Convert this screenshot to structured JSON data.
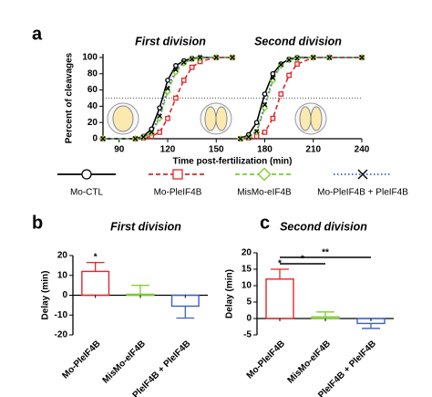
{
  "chart_data": [
    {
      "type": "line",
      "label": "a",
      "annotations": [
        "First division",
        "Second division"
      ],
      "x_label": "Time post-fertilization (min)",
      "y_label": "Percent of cleavages",
      "x": [
        80,
        100,
        105,
        110,
        115,
        120,
        125,
        130,
        135,
        140,
        150,
        160,
        161,
        165,
        170,
        175,
        180,
        185,
        190,
        195,
        200,
        210,
        220,
        240
      ],
      "xlim": [
        80,
        240
      ],
      "xticks": [
        90,
        120,
        150,
        180,
        210,
        240
      ],
      "ylim": [
        0,
        100
      ],
      "yticks": [
        0,
        20,
        40,
        60,
        80,
        100
      ],
      "hline": 50,
      "series": [
        {
          "name": "Mo-CTL",
          "color": "#000000",
          "marker": "circle",
          "dash": "solid",
          "values": [
            0,
            0,
            3,
            12,
            38,
            72,
            90,
            96,
            99,
            100,
            100,
            100,
            null,
            0,
            5,
            20,
            55,
            80,
            92,
            98,
            100,
            100,
            100,
            100
          ]
        },
        {
          "name": "Mo-PleIF4B",
          "color": "#e3262b",
          "marker": "square",
          "dash": "dashed",
          "values": [
            0,
            0,
            1,
            3,
            8,
            25,
            50,
            72,
            88,
            95,
            100,
            100,
            null,
            0,
            1,
            3,
            8,
            25,
            55,
            78,
            92,
            100,
            100,
            100
          ]
        },
        {
          "name": "MisMo-eIF4B",
          "color": "#7ccd2c",
          "marker": "diamond",
          "dash": "dashed",
          "values": [
            0,
            0,
            2,
            7,
            25,
            58,
            82,
            93,
            98,
            99,
            100,
            100,
            null,
            0,
            2,
            8,
            38,
            72,
            90,
            97,
            99,
            100,
            100,
            100
          ]
        },
        {
          "name": "Mo-PleIF4B + PleIF4B",
          "color": "#3b5fc9",
          "marker": "x",
          "dash": "dotted",
          "values": [
            0,
            0,
            2,
            8,
            28,
            62,
            85,
            94,
            98,
            100,
            100,
            100,
            null,
            0,
            2,
            9,
            42,
            75,
            91,
            97,
            99,
            100,
            100,
            100
          ]
        }
      ]
    },
    {
      "type": "bar",
      "label": "b",
      "title": "First division",
      "y_label": "Delay (min)",
      "categories": [
        "Mo-PleIF4B",
        "MisMo-eIF4B",
        "Mo-PleIF4B + PleIF4B"
      ],
      "colors": [
        "#e3262b",
        "#7ccd2c",
        "#3b5fc9"
      ],
      "values": [
        12,
        0.5,
        -5.5
      ],
      "errors": [
        4.5,
        4.5,
        6
      ],
      "stars": [
        "*",
        null,
        null
      ],
      "ylim": [
        -20,
        20
      ],
      "yticks": [
        -20,
        -10,
        0,
        10,
        20
      ]
    },
    {
      "type": "bar",
      "label": "c",
      "title": "Second division",
      "y_label": "Delay (min)",
      "categories": [
        "Mo-PleIF4B",
        "MisMo-eIF4B",
        "Mo-PleIF4B + PleIF4B"
      ],
      "colors": [
        "#e3262b",
        "#7ccd2c",
        "#3b5fc9"
      ],
      "values": [
        12,
        0.5,
        -1.5
      ],
      "errors": [
        3,
        1.5,
        1.5
      ],
      "stars": [
        "*",
        null,
        null
      ],
      "significance": [
        {
          "from": 0,
          "to": 2,
          "label": "**"
        },
        {
          "from": 0,
          "to": 1,
          "label": "*"
        }
      ],
      "ylim": [
        -5,
        20
      ],
      "yticks": [
        -5,
        0,
        5,
        10,
        15,
        20
      ]
    }
  ]
}
